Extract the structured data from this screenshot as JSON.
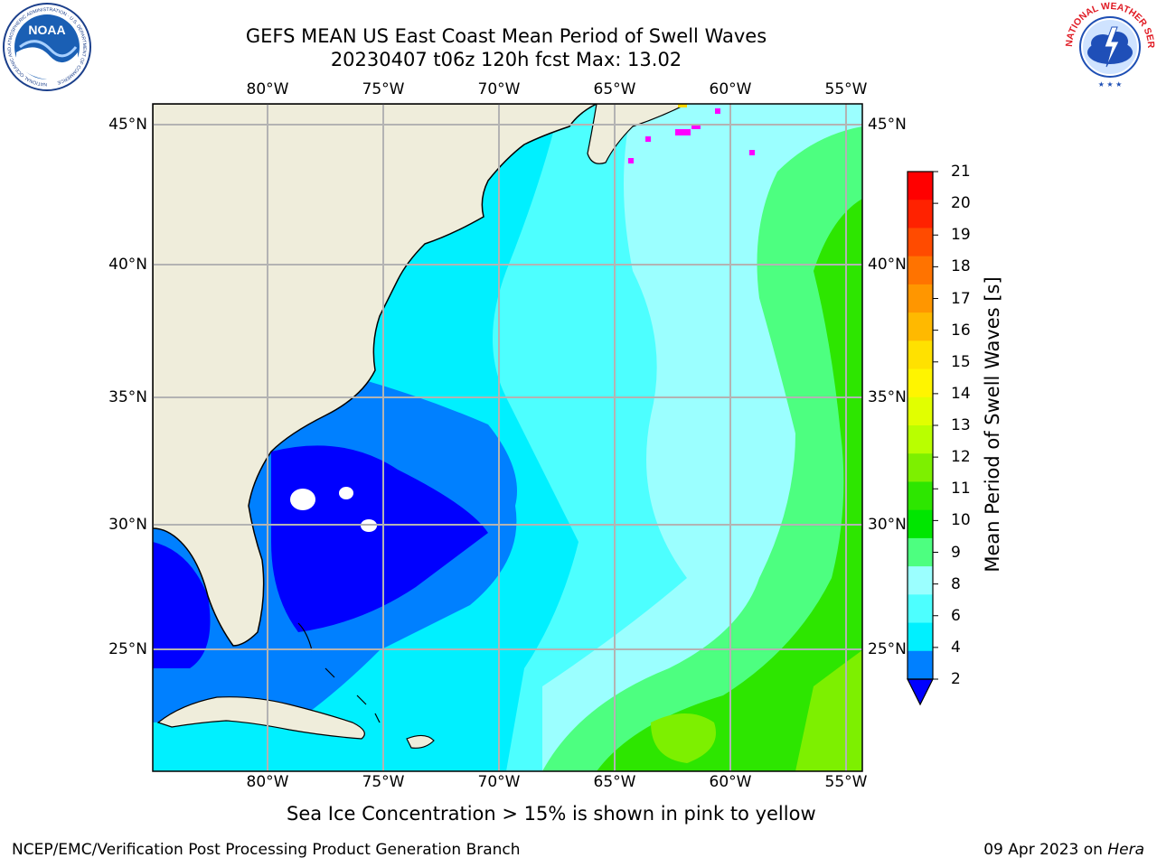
{
  "title": {
    "line1": "GEFS MEAN US East Coast Mean Period of Swell Waves",
    "line2": "20230407 t06z 120h fcst   Max: 13.02"
  },
  "map": {
    "lon_labels": [
      "80°W",
      "75°W",
      "70°W",
      "65°W",
      "60°W",
      "55°W"
    ],
    "lat_labels": [
      "45°N",
      "40°N",
      "35°N",
      "30°N",
      "25°N"
    ],
    "land_color": "#efeddb",
    "grid_color": "#b3b3b3"
  },
  "colorbar": {
    "label": "Mean Period of Swell Waves [s]",
    "ticks": [
      "21",
      "20",
      "19",
      "18",
      "17",
      "16",
      "15",
      "14",
      "13",
      "12",
      "11",
      "10",
      "9",
      "8",
      "6",
      "4",
      "2"
    ],
    "colors": [
      "#ff0000",
      "#ff2200",
      "#ff4b00",
      "#ff7300",
      "#ff9600",
      "#ffb900",
      "#ffe100",
      "#fff500",
      "#e1ff00",
      "#b9ff00",
      "#7df000",
      "#2de600",
      "#00e600",
      "#4dff80",
      "#9bffff",
      "#4dffff",
      "#00f0ff",
      "#0080ff"
    ],
    "extend_color": "#0000ff"
  },
  "ice_note": "Sea Ice Concentration > 15% is shown in pink to yellow",
  "footer": {
    "left": "NCEP/EMC/Verification Post Processing Product Generation Branch",
    "date": "09 Apr 2023 on",
    "host": "Hera"
  },
  "logos": {
    "noaa_text": "NOAA",
    "noaa_ring": "NATIONAL OCEANIC AND ATMOSPHERIC ADMINISTRATION · U.S. DEPARTMENT OF COMMERCE",
    "nws_ring": "NATIONAL WEATHER SERVICE"
  }
}
